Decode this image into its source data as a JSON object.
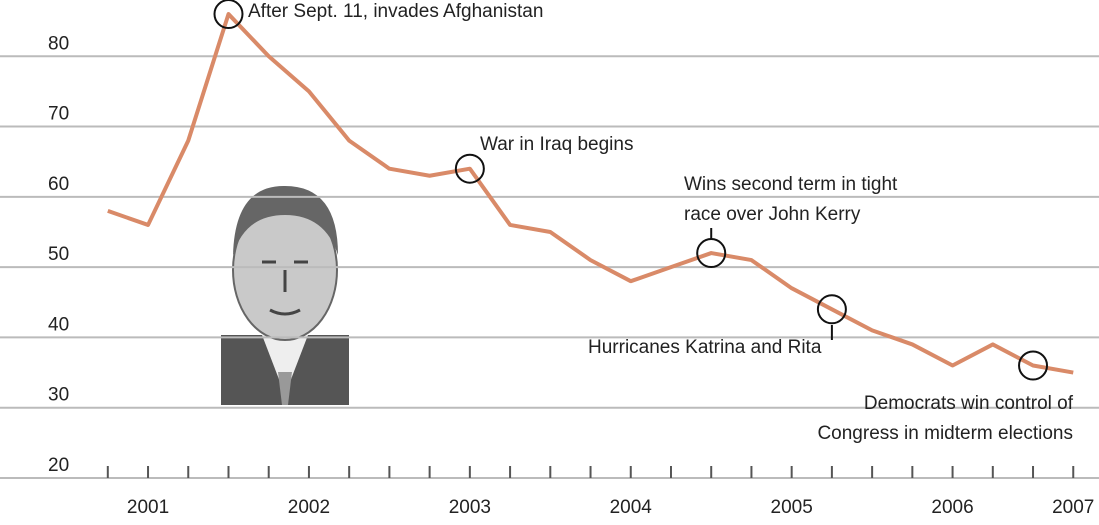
{
  "chart_data": {
    "type": "line",
    "x": [
      2001.25,
      2001.5,
      2001.75,
      2002,
      2002.25,
      2002.5,
      2002.75,
      2003,
      2003.25,
      2003.5,
      2003.75,
      2004,
      2004.25,
      2004.5,
      2004.75,
      2005,
      2005.25,
      2005.5,
      2005.75,
      2006,
      2006.25,
      2006.5,
      2006.75,
      2007,
      2007.25
    ],
    "series": [
      {
        "color": "#d98a68",
        "values": [
          58,
          56,
          68,
          86,
          80,
          75,
          68,
          64,
          63,
          64,
          56,
          55,
          51,
          48,
          50,
          52,
          51,
          47,
          44,
          41,
          39,
          36,
          39,
          36,
          35
        ]
      }
    ],
    "xlim": [
      2000.58,
      2007.41
    ],
    "xticks": [
      {
        "value": 2001.5,
        "label": "2001"
      },
      {
        "value": 2002.5,
        "label": "2002"
      },
      {
        "value": 2003.5,
        "label": "2003"
      },
      {
        "value": 2004.5,
        "label": "2004"
      },
      {
        "value": 2005.5,
        "label": "2005"
      },
      {
        "value": 2006.5,
        "label": "2006"
      },
      {
        "value": 2007.25,
        "label": "2007"
      }
    ],
    "ylim": [
      20,
      88
    ],
    "yticks": [
      20,
      30,
      40,
      50,
      60,
      70,
      80
    ],
    "grid": true,
    "annotations": [
      {
        "point": 3,
        "lines": [
          "After Sept. 11, invades Afghanistan"
        ]
      },
      {
        "point": 9,
        "lines": [
          "War in Iraq begins"
        ]
      },
      {
        "point": 15,
        "lines": [
          "Wins second term in tight",
          "race over John Kerry"
        ]
      },
      {
        "point": 18,
        "lines": [
          "Hurricanes Katrina and Rita"
        ]
      },
      {
        "point": 23,
        "lines": [
          "Democrats win control of",
          "Congress in midterm elections"
        ]
      }
    ]
  }
}
